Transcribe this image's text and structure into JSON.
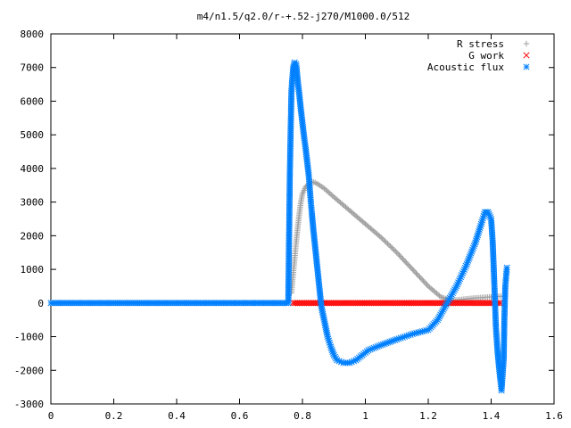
{
  "chart_data": {
    "type": "scatter",
    "title": "m4/n1.5/q2.0/r-+.52-j270/M1000.0/512",
    "xlabel": "",
    "ylabel": "",
    "xlim": [
      0,
      1.6
    ],
    "ylim": [
      -3000,
      8000
    ],
    "xticks": [
      "0",
      "0.2",
      "0.4",
      "0.6",
      "0.8",
      "1",
      "1.2",
      "1.4",
      "1.6"
    ],
    "yticks": [
      "-3000",
      "-2000",
      "-1000",
      "0",
      "1000",
      "2000",
      "3000",
      "4000",
      "5000",
      "6000",
      "7000",
      "8000"
    ],
    "grid": false,
    "legend_position": "top-right",
    "colors": {
      "r_stress": "#a0a0a0",
      "g_work": "#ff0000",
      "acoustic_flux": "#0080ff"
    },
    "series": [
      {
        "name": "R stress",
        "marker": "plus",
        "points": [
          [
            0.765,
            300
          ],
          [
            0.77,
            800
          ],
          [
            0.775,
            1300
          ],
          [
            0.78,
            1800
          ],
          [
            0.785,
            2250
          ],
          [
            0.79,
            2650
          ],
          [
            0.795,
            3000
          ],
          [
            0.8,
            3250
          ],
          [
            0.81,
            3450
          ],
          [
            0.82,
            3550
          ],
          [
            0.83,
            3600
          ],
          [
            0.84,
            3580
          ],
          [
            0.85,
            3530
          ],
          [
            0.87,
            3400
          ],
          [
            0.9,
            3150
          ],
          [
            0.95,
            2750
          ],
          [
            1.0,
            2350
          ],
          [
            1.05,
            1950
          ],
          [
            1.1,
            1500
          ],
          [
            1.15,
            1000
          ],
          [
            1.2,
            500
          ],
          [
            1.24,
            180
          ],
          [
            1.27,
            80
          ],
          [
            1.3,
            100
          ],
          [
            1.35,
            150
          ],
          [
            1.4,
            180
          ],
          [
            1.43,
            200
          ]
        ]
      },
      {
        "name": "G work",
        "marker": "cross",
        "points": [
          [
            0.77,
            0
          ],
          [
            0.85,
            0
          ],
          [
            0.95,
            0
          ],
          [
            1.05,
            0
          ],
          [
            1.15,
            0
          ],
          [
            1.25,
            0
          ],
          [
            1.35,
            0
          ],
          [
            1.43,
            0
          ]
        ]
      },
      {
        "name": "Acoustic flux",
        "marker": "star",
        "points": [
          [
            0.0,
            0
          ],
          [
            0.1,
            0
          ],
          [
            0.2,
            0
          ],
          [
            0.3,
            0
          ],
          [
            0.4,
            0
          ],
          [
            0.5,
            0
          ],
          [
            0.6,
            0
          ],
          [
            0.7,
            0
          ],
          [
            0.755,
            0
          ],
          [
            0.76,
            3900
          ],
          [
            0.765,
            6300
          ],
          [
            0.77,
            6950
          ],
          [
            0.775,
            7150
          ],
          [
            0.78,
            7100
          ],
          [
            0.785,
            6600
          ],
          [
            0.79,
            6200
          ],
          [
            0.795,
            5750
          ],
          [
            0.8,
            5350
          ],
          [
            0.805,
            4950
          ],
          [
            0.81,
            4600
          ],
          [
            0.815,
            4200
          ],
          [
            0.82,
            3800
          ],
          [
            0.825,
            3200
          ],
          [
            0.83,
            2650
          ],
          [
            0.835,
            2150
          ],
          [
            0.84,
            1700
          ],
          [
            0.845,
            1250
          ],
          [
            0.85,
            800
          ],
          [
            0.855,
            350
          ],
          [
            0.86,
            -100
          ],
          [
            0.87,
            -550
          ],
          [
            0.88,
            -1000
          ],
          [
            0.89,
            -1300
          ],
          [
            0.9,
            -1550
          ],
          [
            0.91,
            -1700
          ],
          [
            0.93,
            -1780
          ],
          [
            0.95,
            -1780
          ],
          [
            0.97,
            -1700
          ],
          [
            0.99,
            -1550
          ],
          [
            1.01,
            -1400
          ],
          [
            1.05,
            -1250
          ],
          [
            1.1,
            -1080
          ],
          [
            1.15,
            -920
          ],
          [
            1.2,
            -800
          ],
          [
            1.23,
            -500
          ],
          [
            1.26,
            0
          ],
          [
            1.29,
            500
          ],
          [
            1.32,
            1100
          ],
          [
            1.35,
            1800
          ],
          [
            1.37,
            2400
          ],
          [
            1.38,
            2700
          ],
          [
            1.39,
            2700
          ],
          [
            1.4,
            2500
          ],
          [
            1.405,
            1800
          ],
          [
            1.41,
            600
          ],
          [
            1.415,
            -700
          ],
          [
            1.42,
            -1400
          ],
          [
            1.425,
            -1900
          ],
          [
            1.43,
            -2350
          ],
          [
            1.433,
            -2600
          ],
          [
            1.44,
            -1650
          ],
          [
            1.442,
            -500
          ],
          [
            1.445,
            500
          ],
          [
            1.45,
            1050
          ]
        ]
      }
    ]
  }
}
